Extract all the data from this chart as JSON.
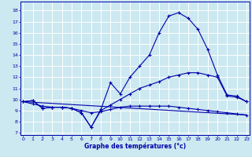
{
  "xlabel": "Graphe des températures (°c)",
  "bg_color": "#cce8f0",
  "line_color": "#0000aa",
  "grid_color": "#ffffff",
  "x_ticks": [
    0,
    1,
    2,
    3,
    4,
    5,
    6,
    7,
    8,
    9,
    10,
    11,
    12,
    13,
    14,
    15,
    16,
    17,
    18,
    19,
    20,
    21,
    22,
    23
  ],
  "y_ticks": [
    7,
    8,
    9,
    10,
    11,
    12,
    13,
    14,
    15,
    16,
    17,
    18
  ],
  "ylim": [
    6.8,
    18.8
  ],
  "xlim": [
    -0.3,
    23.3
  ],
  "series1_x": [
    0,
    1,
    2,
    3,
    4,
    5,
    6,
    7,
    8,
    9,
    10,
    11,
    12,
    13,
    14,
    15,
    16,
    17,
    18,
    19,
    20,
    21,
    22,
    23
  ],
  "series1_y": [
    9.8,
    9.9,
    9.2,
    9.3,
    9.3,
    9.2,
    8.8,
    7.5,
    9.1,
    11.5,
    10.5,
    12.0,
    13.0,
    14.0,
    16.0,
    17.5,
    17.8,
    17.3,
    16.3,
    14.5,
    12.2,
    10.4,
    10.3,
    9.8
  ],
  "series2_x": [
    0,
    1,
    2,
    3,
    4,
    5,
    6,
    7,
    8,
    9,
    10,
    11,
    12,
    13,
    14,
    15,
    16,
    17,
    18,
    19,
    20,
    21,
    22,
    23
  ],
  "series2_y": [
    9.8,
    9.9,
    9.2,
    9.3,
    9.3,
    9.2,
    8.8,
    7.5,
    9.0,
    9.5,
    10.0,
    10.5,
    11.0,
    11.3,
    11.6,
    12.0,
    12.2,
    12.4,
    12.4,
    12.2,
    12.0,
    10.3,
    10.2,
    9.8
  ],
  "series3_x": [
    0,
    1,
    2,
    3,
    4,
    5,
    6,
    7,
    8,
    9,
    10,
    11,
    12,
    13,
    14,
    15,
    16,
    17,
    18,
    19,
    20,
    21,
    22,
    23
  ],
  "series3_y": [
    9.8,
    9.6,
    9.4,
    9.3,
    9.3,
    9.2,
    9.0,
    8.8,
    8.9,
    9.1,
    9.3,
    9.4,
    9.4,
    9.4,
    9.4,
    9.4,
    9.3,
    9.2,
    9.1,
    9.0,
    8.9,
    8.8,
    8.7,
    8.6
  ],
  "series4_x": [
    0,
    23
  ],
  "series4_y": [
    9.8,
    8.6
  ]
}
